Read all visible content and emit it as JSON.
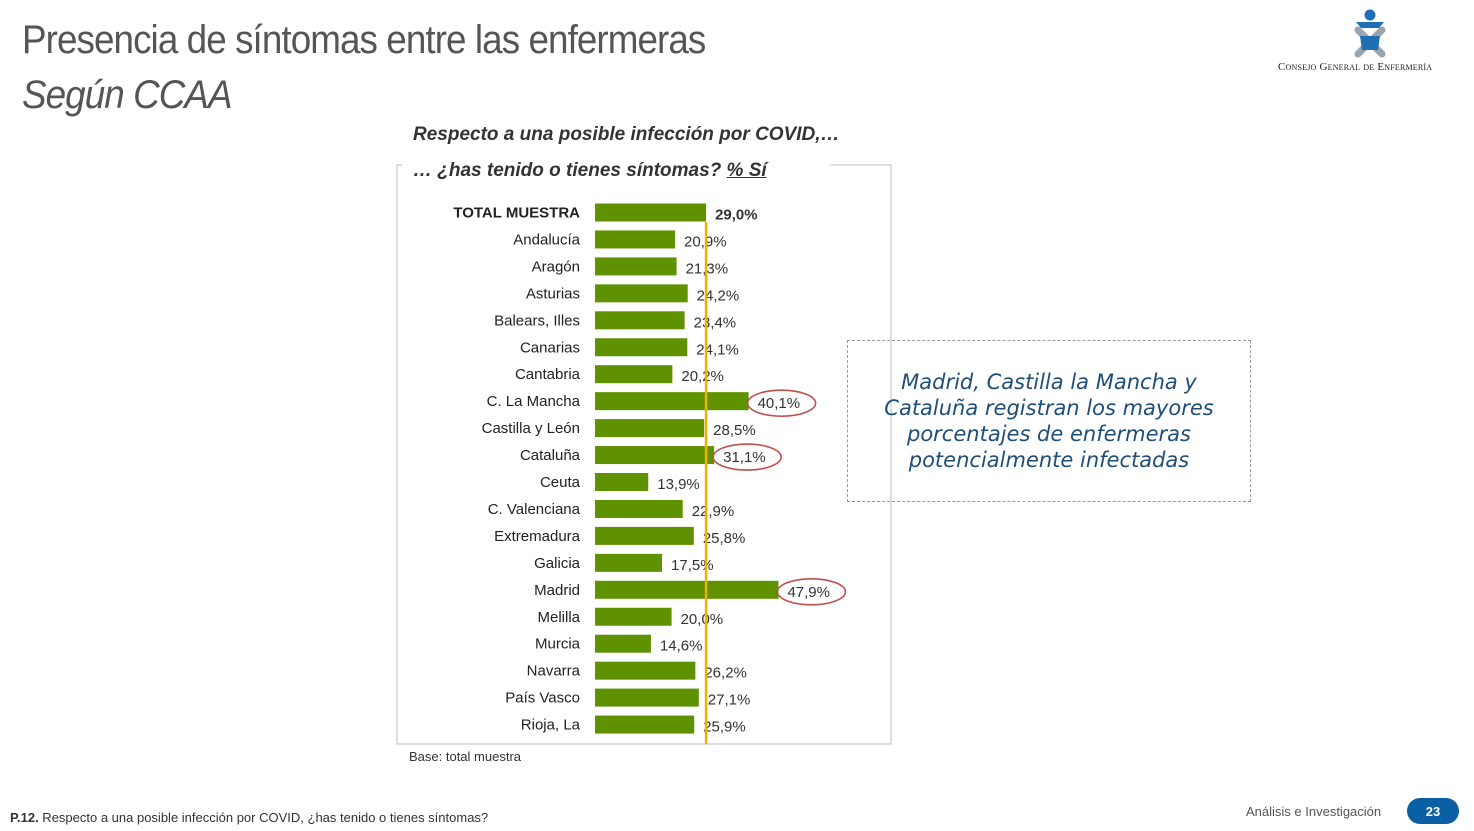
{
  "header": {
    "title": "Presencia de síntomas entre las enfermeras",
    "subtitle": "Según CCAA",
    "logo_text": "Consejo General de Enfermería"
  },
  "question": {
    "line1": "Respecto a una posible infección por COVID,…",
    "line2_prefix": "… ¿has tenido o tienes síntomas? ",
    "line2_unit": "% Sí"
  },
  "callout": {
    "text": "Madrid, Castilla la Mancha y Cataluña registran los mayores porcentajes de enfermeras potencialmente infectadas"
  },
  "base_text": "Base: total muestra",
  "footer": {
    "code": "P.12.",
    "question": " Respecto a una posible infección por COVID, ¿has tenido o tienes síntomas?",
    "section": "Análisis e Investigación",
    "page": "23"
  },
  "colors": {
    "bar": "#5f9200",
    "reference_line": "#f0b000",
    "highlight_circle": "#c0504d",
    "callout_text": "#1f4e79",
    "page_badge": "#0b5fa5"
  },
  "chart_data": {
    "type": "bar",
    "orientation": "horizontal",
    "unit": "%",
    "reference_value": 29.0,
    "categories": [
      "TOTAL MUESTRA",
      "Andalucía",
      "Aragón",
      "Asturias",
      "Balears, Illes",
      "Canarias",
      "Cantabria",
      "C. La Mancha",
      "Castilla y León",
      "Cataluña",
      "Ceuta",
      "C. Valenciana",
      "Extremadura",
      "Galicia",
      "Madrid",
      "Melilla",
      "Murcia",
      "Navarra",
      "País Vasco",
      "Rioja, La"
    ],
    "values": [
      29.0,
      20.9,
      21.3,
      24.2,
      23.4,
      24.1,
      20.2,
      40.1,
      28.5,
      31.1,
      13.9,
      22.9,
      25.8,
      17.5,
      47.9,
      20.0,
      14.6,
      26.2,
      27.1,
      25.9
    ],
    "value_labels": [
      "29,0%",
      "20,9%",
      "21,3%",
      "24,2%",
      "23,4%",
      "24,1%",
      "20,2%",
      "40,1%",
      "28,5%",
      "31,1%",
      "13,9%",
      "22,9%",
      "25,8%",
      "17,5%",
      "47,9%",
      "20,0%",
      "14,6%",
      "26,2%",
      "27,1%",
      "25,9%"
    ],
    "highlighted": [
      "C. La Mancha",
      "Cataluña",
      "Madrid"
    ],
    "bold_categories": [
      "TOTAL MUESTRA"
    ],
    "xlim": [
      0,
      50
    ]
  }
}
